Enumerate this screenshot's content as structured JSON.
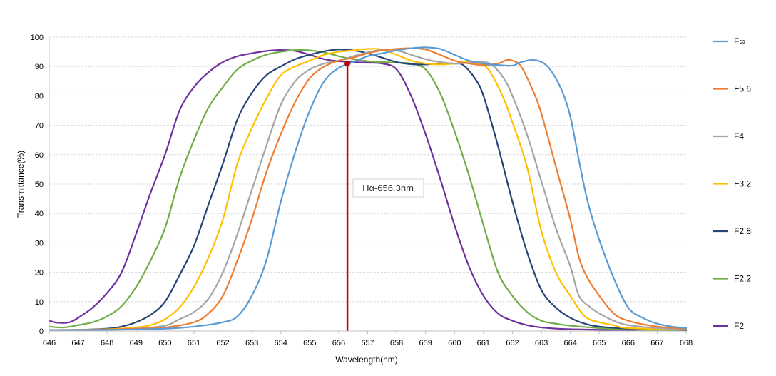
{
  "chart_data": {
    "type": "line",
    "xlabel": "Wavelength(nm)",
    "ylabel": "Transmittance(%)",
    "xlim": [
      646,
      668
    ],
    "ylim": [
      0,
      100
    ],
    "x_ticks": [
      646,
      647,
      648,
      649,
      650,
      651,
      652,
      653,
      654,
      655,
      656,
      657,
      658,
      659,
      660,
      661,
      662,
      663,
      664,
      665,
      666,
      667,
      668
    ],
    "y_ticks": [
      0,
      10,
      20,
      30,
      40,
      50,
      60,
      70,
      80,
      90,
      100
    ],
    "grid": "horizontal",
    "legend_position": "right",
    "annotation": {
      "label": "Hα-656.3nm",
      "x": 656.3,
      "y": 91,
      "color": "#c00000"
    },
    "series": [
      {
        "name": "F∞",
        "color": "#5b9bd5",
        "points": [
          [
            646,
            0.3
          ],
          [
            648,
            0.4
          ],
          [
            650,
            0.8
          ],
          [
            651,
            1.5
          ],
          [
            652,
            3
          ],
          [
            652.5,
            5
          ],
          [
            653,
            12
          ],
          [
            653.5,
            24
          ],
          [
            654,
            44
          ],
          [
            654.5,
            61
          ],
          [
            655,
            75
          ],
          [
            655.5,
            85
          ],
          [
            656,
            89.5
          ],
          [
            656.5,
            91.5
          ],
          [
            657,
            93.5
          ],
          [
            657.5,
            94.5
          ],
          [
            658,
            95.5
          ],
          [
            658.5,
            96.2
          ],
          [
            659,
            96.5
          ],
          [
            659.5,
            96
          ],
          [
            660,
            94
          ],
          [
            660.5,
            92
          ],
          [
            661,
            91
          ],
          [
            661.5,
            90.5
          ],
          [
            662,
            90.3
          ],
          [
            662.3,
            91.5
          ],
          [
            662.7,
            92.2
          ],
          [
            663,
            91.5
          ],
          [
            663.3,
            89
          ],
          [
            663.7,
            82
          ],
          [
            664,
            73
          ],
          [
            664.3,
            58
          ],
          [
            664.6,
            44
          ],
          [
            665,
            31
          ],
          [
            665.5,
            18
          ],
          [
            666,
            8
          ],
          [
            666.5,
            4.5
          ],
          [
            667,
            2.5
          ],
          [
            667.5,
            1.5
          ],
          [
            668,
            1
          ]
        ]
      },
      {
        "name": "F5.6",
        "color": "#ed7d31",
        "points": [
          [
            646,
            0.3
          ],
          [
            648,
            0.5
          ],
          [
            649,
            0.8
          ],
          [
            650,
            1.2
          ],
          [
            651,
            3
          ],
          [
            651.5,
            6
          ],
          [
            652,
            12
          ],
          [
            652.5,
            24
          ],
          [
            653,
            38
          ],
          [
            653.5,
            54
          ],
          [
            654,
            67
          ],
          [
            654.5,
            78
          ],
          [
            655,
            86
          ],
          [
            655.5,
            90
          ],
          [
            656,
            92
          ],
          [
            656.5,
            93
          ],
          [
            657,
            94.5
          ],
          [
            657.5,
            95.5
          ],
          [
            658,
            96
          ],
          [
            658.5,
            96.2
          ],
          [
            659,
            95.8
          ],
          [
            659.5,
            94
          ],
          [
            660,
            92
          ],
          [
            660.5,
            91
          ],
          [
            661,
            90.5
          ],
          [
            661.5,
            91
          ],
          [
            661.8,
            92.2
          ],
          [
            662,
            92
          ],
          [
            662.3,
            90
          ],
          [
            662.7,
            82
          ],
          [
            663,
            74
          ],
          [
            663.5,
            56
          ],
          [
            664,
            38
          ],
          [
            664.3,
            25
          ],
          [
            664.6,
            18
          ],
          [
            665,
            12
          ],
          [
            665.5,
            6
          ],
          [
            666,
            3.5
          ],
          [
            667,
            1.5
          ],
          [
            668,
            0.8
          ]
        ]
      },
      {
        "name": "F4",
        "color": "#a5a5a5",
        "points": [
          [
            646,
            0.3
          ],
          [
            648,
            0.5
          ],
          [
            649,
            0.8
          ],
          [
            650,
            1.8
          ],
          [
            650.5,
            4
          ],
          [
            651,
            6.5
          ],
          [
            651.5,
            11
          ],
          [
            652,
            20
          ],
          [
            652.5,
            33
          ],
          [
            653,
            48
          ],
          [
            653.5,
            63
          ],
          [
            654,
            77
          ],
          [
            654.5,
            85
          ],
          [
            655,
            89
          ],
          [
            655.5,
            91
          ],
          [
            656,
            92
          ],
          [
            656.5,
            93.5
          ],
          [
            657,
            94.8
          ],
          [
            657.5,
            95.7
          ],
          [
            658,
            95.5
          ],
          [
            658.5,
            94
          ],
          [
            659,
            92.5
          ],
          [
            659.5,
            91.5
          ],
          [
            660,
            91
          ],
          [
            660.5,
            91.3
          ],
          [
            661,
            91.5
          ],
          [
            661.3,
            90.5
          ],
          [
            661.7,
            86
          ],
          [
            662,
            80
          ],
          [
            662.5,
            67
          ],
          [
            663,
            51
          ],
          [
            663.5,
            35
          ],
          [
            664,
            22
          ],
          [
            664.3,
            12
          ],
          [
            664.7,
            8
          ],
          [
            665,
            6
          ],
          [
            665.5,
            3.5
          ],
          [
            666,
            2
          ],
          [
            667,
            1
          ],
          [
            668,
            0.5
          ]
        ]
      },
      {
        "name": "F3.2",
        "color": "#ffc000",
        "points": [
          [
            646,
            0.3
          ],
          [
            647,
            0.4
          ],
          [
            648,
            0.6
          ],
          [
            649,
            1.2
          ],
          [
            649.5,
            2
          ],
          [
            650,
            4
          ],
          [
            650.5,
            8
          ],
          [
            651,
            15
          ],
          [
            651.5,
            25
          ],
          [
            652,
            38
          ],
          [
            652.5,
            57
          ],
          [
            653,
            69
          ],
          [
            653.5,
            79
          ],
          [
            654,
            87
          ],
          [
            654.5,
            90
          ],
          [
            655,
            92
          ],
          [
            655.5,
            94
          ],
          [
            656,
            95
          ],
          [
            656.5,
            95.5
          ],
          [
            657,
            96
          ],
          [
            657.5,
            95.8
          ],
          [
            658,
            94
          ],
          [
            658.5,
            92
          ],
          [
            659,
            91
          ],
          [
            659.5,
            90.7
          ],
          [
            660,
            91
          ],
          [
            660.5,
            91.5
          ],
          [
            661,
            90.5
          ],
          [
            661.3,
            87
          ],
          [
            661.7,
            79
          ],
          [
            662,
            71
          ],
          [
            662.5,
            56
          ],
          [
            663,
            34
          ],
          [
            663.5,
            20
          ],
          [
            664,
            12
          ],
          [
            664.5,
            5
          ],
          [
            665,
            3
          ],
          [
            665.5,
            2
          ],
          [
            666,
            1
          ],
          [
            668,
            0.5
          ]
        ]
      },
      {
        "name": "F2.8",
        "color": "#264478",
        "points": [
          [
            646,
            0.3
          ],
          [
            647,
            0.4
          ],
          [
            648,
            0.8
          ],
          [
            648.5,
            1.5
          ],
          [
            649,
            3
          ],
          [
            649.5,
            5.5
          ],
          [
            650,
            10
          ],
          [
            650.5,
            19
          ],
          [
            651,
            29
          ],
          [
            651.5,
            43
          ],
          [
            652,
            57
          ],
          [
            652.5,
            72
          ],
          [
            653,
            81
          ],
          [
            653.5,
            87
          ],
          [
            654,
            90
          ],
          [
            654.5,
            92.5
          ],
          [
            655,
            94
          ],
          [
            655.5,
            95.2
          ],
          [
            656,
            95.8
          ],
          [
            656.5,
            95.5
          ],
          [
            657,
            94.5
          ],
          [
            657.5,
            93
          ],
          [
            658,
            91.5
          ],
          [
            658.5,
            90.8
          ],
          [
            659,
            90.7
          ],
          [
            659.5,
            91
          ],
          [
            660,
            91
          ],
          [
            660.3,
            90.5
          ],
          [
            660.7,
            86
          ],
          [
            661,
            80
          ],
          [
            661.5,
            63
          ],
          [
            662,
            44
          ],
          [
            662.5,
            27
          ],
          [
            663,
            14
          ],
          [
            663.5,
            8
          ],
          [
            664,
            4.5
          ],
          [
            664.5,
            2.5
          ],
          [
            665,
            1.5
          ],
          [
            666,
            0.8
          ],
          [
            668,
            0.4
          ]
        ]
      },
      {
        "name": "F2.2",
        "color": "#70ad47",
        "points": [
          [
            646,
            1.5
          ],
          [
            646.5,
            1.2
          ],
          [
            647,
            2
          ],
          [
            647.5,
            3
          ],
          [
            648,
            5
          ],
          [
            648.5,
            8.5
          ],
          [
            649,
            15
          ],
          [
            649.5,
            24
          ],
          [
            650,
            35
          ],
          [
            650.5,
            52
          ],
          [
            651,
            65
          ],
          [
            651.5,
            76
          ],
          [
            652,
            83
          ],
          [
            652.5,
            89
          ],
          [
            653,
            92
          ],
          [
            653.5,
            94
          ],
          [
            654,
            95
          ],
          [
            654.5,
            95.6
          ],
          [
            655,
            95.5
          ],
          [
            655.5,
            94.8
          ],
          [
            656,
            93.5
          ],
          [
            656.5,
            92.5
          ],
          [
            657,
            91.8
          ],
          [
            657.5,
            91.5
          ],
          [
            658,
            91.3
          ],
          [
            658.5,
            91
          ],
          [
            659,
            89
          ],
          [
            659.5,
            81
          ],
          [
            660,
            68
          ],
          [
            660.5,
            53
          ],
          [
            661,
            36
          ],
          [
            661.5,
            20
          ],
          [
            662,
            12
          ],
          [
            662.5,
            6.5
          ],
          [
            663,
            3.5
          ],
          [
            663.5,
            2.5
          ],
          [
            664,
            1.8
          ],
          [
            665,
            1
          ],
          [
            666,
            0.5
          ],
          [
            668,
            0.3
          ]
        ]
      },
      {
        "name": "F2",
        "color": "#7030a0",
        "points": [
          [
            646,
            3.5
          ],
          [
            646.3,
            2.8
          ],
          [
            646.7,
            3
          ],
          [
            647,
            4.5
          ],
          [
            647.5,
            8
          ],
          [
            648,
            13
          ],
          [
            648.5,
            20
          ],
          [
            649,
            33
          ],
          [
            649.5,
            47
          ],
          [
            650,
            60
          ],
          [
            650.5,
            75
          ],
          [
            651,
            83
          ],
          [
            651.5,
            88
          ],
          [
            652,
            91.5
          ],
          [
            652.5,
            93.5
          ],
          [
            653,
            94.5
          ],
          [
            653.5,
            95.3
          ],
          [
            654,
            95.6
          ],
          [
            654.5,
            95.3
          ],
          [
            655,
            94
          ],
          [
            655.5,
            92.5
          ],
          [
            656,
            91.8
          ],
          [
            656.5,
            91.5
          ],
          [
            657,
            91.3
          ],
          [
            657.5,
            91
          ],
          [
            658,
            89
          ],
          [
            658.5,
            80
          ],
          [
            659,
            67
          ],
          [
            659.5,
            52
          ],
          [
            660,
            36
          ],
          [
            660.5,
            22
          ],
          [
            661,
            12
          ],
          [
            661.5,
            6
          ],
          [
            662,
            3.5
          ],
          [
            662.5,
            2
          ],
          [
            663,
            1.2
          ],
          [
            664,
            0.6
          ],
          [
            666,
            0.3
          ],
          [
            668,
            0.2
          ]
        ]
      }
    ]
  }
}
